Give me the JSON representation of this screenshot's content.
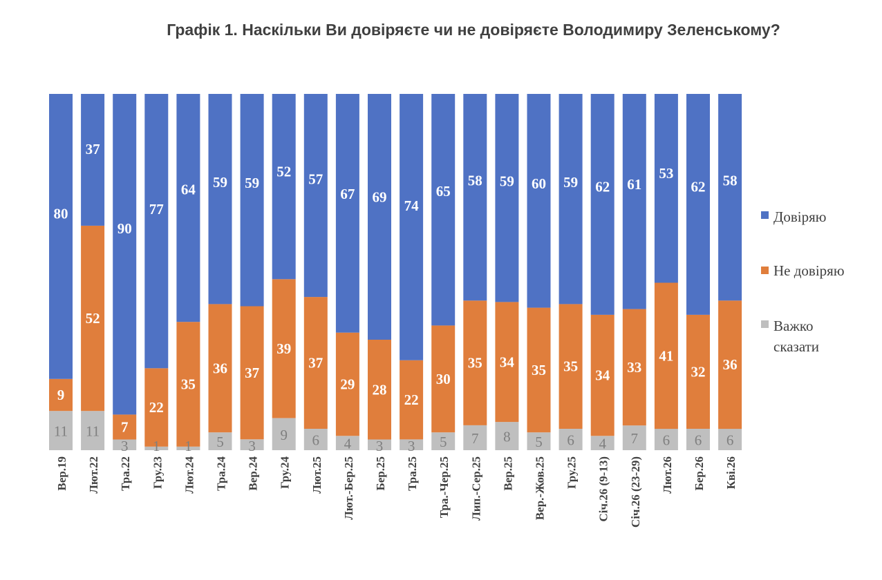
{
  "chart_data": {
    "type": "bar",
    "stacked": true,
    "title": "Графік 1. Наскільки Ви довіряєте чи не довіряєте Володимиру Зеленському?",
    "categories": [
      "Вер.19",
      "Лют.22",
      "Тра.22",
      "Гру.23",
      "Лют.24",
      "Тра.24",
      "Вер.24",
      "Гру.24",
      "Лют.25",
      "Лют.-Бер.25",
      "Бер.25",
      "Тра.25",
      "Тра.-Чер.25",
      "Лип.-Сер.25",
      "Вер.25",
      "Вер.-Жов.25",
      "Гру.25",
      "Січ.26 (9-13)",
      "Січ.26 (23-29)",
      "Лют.26",
      "Бер.26",
      "Кві.26"
    ],
    "series": [
      {
        "name": "Довіряю",
        "color": "#4f72c4",
        "values": [
          80,
          37,
          90,
          77,
          64,
          59,
          59,
          52,
          57,
          67,
          69,
          74,
          65,
          58,
          59,
          60,
          59,
          62,
          61,
          53,
          62,
          58
        ]
      },
      {
        "name": "Не довіряю",
        "color": "#e07e3c",
        "values": [
          9,
          52,
          7,
          22,
          35,
          36,
          37,
          39,
          37,
          29,
          28,
          22,
          30,
          35,
          34,
          35,
          35,
          34,
          33,
          41,
          32,
          36
        ]
      },
      {
        "name": "Важко сказати",
        "color": "#bfbfbf",
        "values": [
          11,
          11,
          3,
          1,
          1,
          5,
          3,
          9,
          6,
          4,
          3,
          3,
          5,
          7,
          8,
          5,
          6,
          4,
          7,
          6,
          6,
          6
        ]
      }
    ],
    "legend": [
      "Довіряю",
      "Не довіряю",
      "Важко",
      "сказати"
    ],
    "legend_position": "right",
    "ylim": [
      0,
      100
    ],
    "grid": false
  }
}
